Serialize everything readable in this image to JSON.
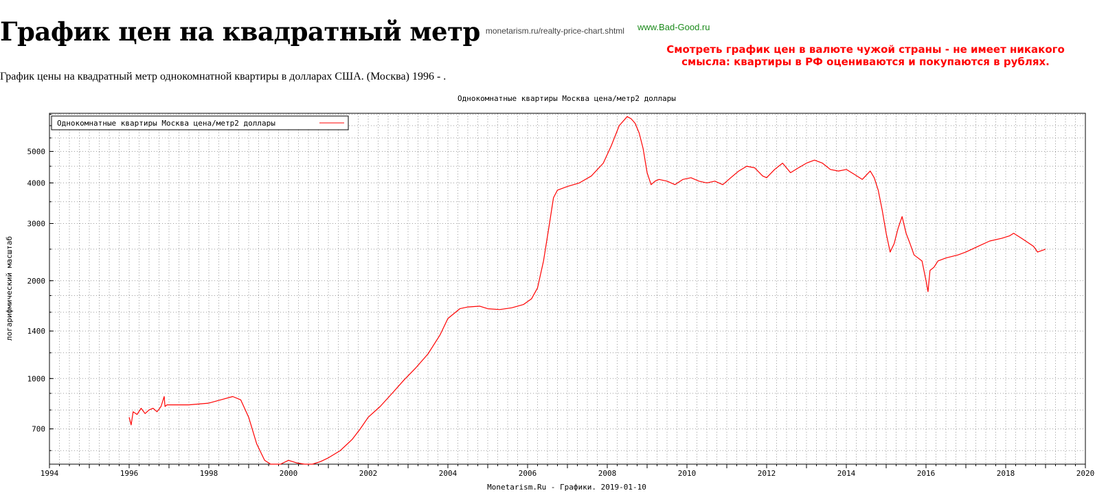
{
  "page": {
    "title": "График цен на квадратный метр",
    "title_link": "monetarism.ru/realty-price-chart.shtml",
    "site_link": "www.Bad-Good.ru",
    "warning": "Смотреть график цен в валюте чужой страны - не имеет никакого смысла: квартиры в РФ оцениваются и покупаются в рублях.",
    "subtitle": "График цены на квадратный метр однокомнатной квартиры в долларах США. (Москва) 1996 - ."
  },
  "colors": {
    "series": "#ff0000",
    "warning": "#ff0000",
    "site_link": "#1a8a1a"
  },
  "chart_data": {
    "type": "line",
    "title": "Однокомнатные квартиры Москва цена/метр2 доллары",
    "ylabel": "логарифмический масштаб",
    "footer": "Monetarism.Ru - Графики. 2019-01-10",
    "xlim": [
      1994,
      2020
    ],
    "ylim": [
      545,
      6550
    ],
    "y_scale": "log",
    "grid": true,
    "legend_position": "top-left",
    "xticks": [
      1994,
      1996,
      1998,
      2000,
      2002,
      2004,
      2006,
      2008,
      2010,
      2012,
      2014,
      2016,
      2018,
      2020
    ],
    "yticks": [
      700,
      1000,
      1400,
      2000,
      3000,
      4000,
      5000
    ],
    "series": [
      {
        "name": "Однокомнатные квартиры Москва цена/метр2 доллары",
        "color": "#ff0000",
        "x": [
          1996.0,
          1996.05,
          1996.1,
          1996.2,
          1996.3,
          1996.4,
          1996.5,
          1996.6,
          1996.7,
          1996.8,
          1996.88,
          1996.9,
          1996.95,
          1997.0,
          1997.5,
          1998.0,
          1998.3,
          1998.6,
          1998.8,
          1999.0,
          1999.2,
          1999.4,
          1999.55,
          1999.8,
          2000.0,
          2000.2,
          2000.4,
          2000.6,
          2000.8,
          2001.0,
          2001.3,
          2001.6,
          2001.8,
          2002.0,
          2002.3,
          2002.6,
          2002.9,
          2003.2,
          2003.5,
          2003.8,
          2004.0,
          2004.3,
          2004.5,
          2004.8,
          2005.0,
          2005.3,
          2005.6,
          2005.9,
          2006.1,
          2006.25,
          2006.4,
          2006.55,
          2006.65,
          2006.75,
          2007.0,
          2007.3,
          2007.6,
          2007.9,
          2008.1,
          2008.3,
          2008.5,
          2008.6,
          2008.7,
          2008.8,
          2008.9,
          2009.0,
          2009.1,
          2009.2,
          2009.3,
          2009.5,
          2009.7,
          2009.9,
          2010.1,
          2010.3,
          2010.5,
          2010.7,
          2010.9,
          2011.1,
          2011.3,
          2011.5,
          2011.7,
          2011.9,
          2012.0,
          2012.2,
          2012.4,
          2012.6,
          2012.8,
          2013.0,
          2013.2,
          2013.4,
          2013.6,
          2013.8,
          2014.0,
          2014.2,
          2014.4,
          2014.6,
          2014.7,
          2014.8,
          2014.9,
          2015.0,
          2015.1,
          2015.2,
          2015.3,
          2015.4,
          2015.5,
          2015.6,
          2015.7,
          2015.8,
          2015.9,
          2016.0,
          2016.05,
          2016.1,
          2016.2,
          2016.3,
          2016.5,
          2016.8,
          2017.0,
          2017.3,
          2017.6,
          2017.9,
          2018.1,
          2018.2,
          2018.4,
          2018.6,
          2018.7,
          2018.8,
          2019.0
        ],
        "values": [
          760,
          720,
          790,
          775,
          810,
          780,
          800,
          810,
          790,
          820,
          880,
          820,
          830,
          830,
          830,
          840,
          860,
          880,
          860,
          760,
          630,
          560,
          545,
          545,
          560,
          550,
          545,
          545,
          555,
          570,
          600,
          650,
          700,
          760,
          820,
          900,
          990,
          1080,
          1190,
          1360,
          1530,
          1640,
          1660,
          1670,
          1640,
          1630,
          1650,
          1690,
          1760,
          1900,
          2300,
          3000,
          3600,
          3800,
          3900,
          4000,
          4200,
          4600,
          5200,
          6000,
          6400,
          6300,
          6100,
          5700,
          5100,
          4300,
          3950,
          4050,
          4100,
          4050,
          3950,
          4100,
          4150,
          4050,
          4000,
          4050,
          3950,
          4150,
          4350,
          4500,
          4450,
          4200,
          4150,
          4400,
          4600,
          4300,
          4450,
          4600,
          4700,
          4600,
          4400,
          4350,
          4400,
          4250,
          4100,
          4350,
          4150,
          3800,
          3300,
          2800,
          2450,
          2600,
          2900,
          3150,
          2800,
          2600,
          2400,
          2350,
          2300,
          2000,
          1850,
          2150,
          2200,
          2300,
          2350,
          2400,
          2450,
          2550,
          2650,
          2700,
          2750,
          2800,
          2700,
          2600,
          2550,
          2450,
          2500
        ]
      }
    ]
  }
}
